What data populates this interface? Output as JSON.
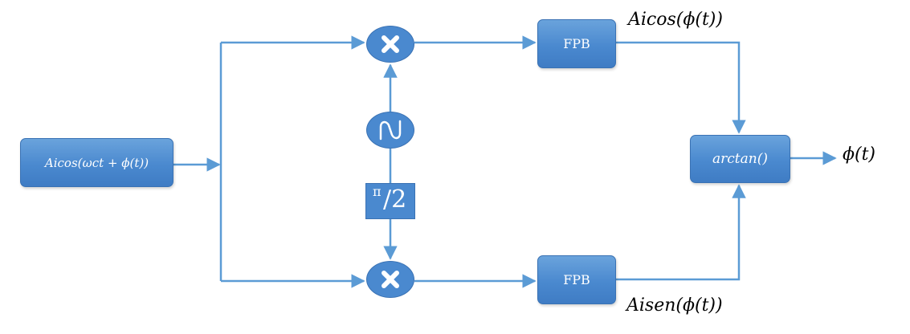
{
  "blocks": {
    "input_signal": "Aicos(ωct + ϕ(t))",
    "lpf_top": "FPB",
    "lpf_bottom": "FPB",
    "arctan": "arctan()",
    "phase_shift_num": "π",
    "phase_shift_den": "/2"
  },
  "labels": {
    "top_output": "Aicos(ϕ(t))",
    "bottom_output": "Aisen(ϕ(t))",
    "final_output": "ϕ(t)"
  },
  "icons": {
    "multiplier": "multiply-icon",
    "oscillator": "sine-wave-icon"
  },
  "colors": {
    "block_fill": "#4a89cf",
    "block_border": "#3a72b4",
    "wire": "#5b9bd5",
    "text_on_block": "#ffffff",
    "label_text": "#000000"
  }
}
